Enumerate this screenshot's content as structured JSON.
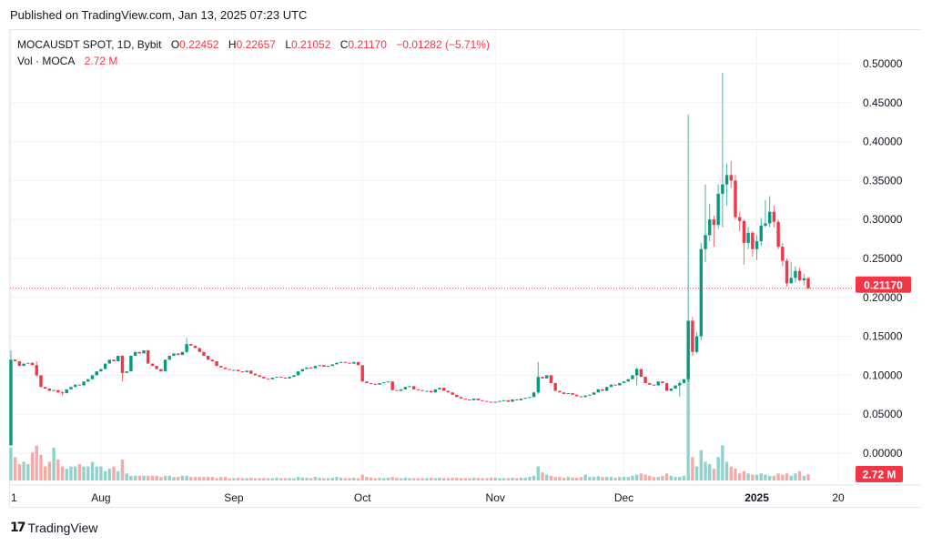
{
  "header": {
    "published": "Published on TradingView.com, Jan 13, 2025 07:23 UTC"
  },
  "legend": {
    "symbol": "MOCAUSDT SPOT, 1D, Bybit",
    "o_label": "O",
    "o": "0.22452",
    "h_label": "H",
    "h": "0.22657",
    "l_label": "L",
    "l": "0.21052",
    "c_label": "C",
    "c": "0.21170",
    "change": "−0.01282 (−5.71%)",
    "vol_label": "Vol · MOCA",
    "vol": "2.72 M"
  },
  "footer": {
    "brand": "TradingView",
    "logo_text": "17"
  },
  "colors": {
    "up": "#089981",
    "down": "#f23645",
    "up_volume": "#92d2cc",
    "down_volume": "#f7a9a7",
    "grid": "#f0f3fa",
    "axis_text": "#131722"
  },
  "chart_data": {
    "type": "candlestick",
    "start_date": "2024-07-11",
    "first_open": 0.01,
    "ylim": [
      0,
      0.5
    ],
    "y_ticks": [
      "0.00000",
      "0.05000",
      "0.10000",
      "0.15000",
      "0.20000",
      "0.25000",
      "0.30000",
      "0.35000",
      "0.40000",
      "0.45000",
      "0.50000"
    ],
    "x_ticks": [
      {
        "label": "1",
        "date": "2024-07-11"
      },
      {
        "label": "Aug",
        "date": "2024-08-01"
      },
      {
        "label": "Sep",
        "date": "2024-09-01"
      },
      {
        "label": "Oct",
        "date": "2024-10-01"
      },
      {
        "label": "Nov",
        "date": "2024-11-01"
      },
      {
        "label": "Dec",
        "date": "2024-12-01"
      },
      {
        "label": "2025",
        "date": "2025-01-01",
        "bold": true
      },
      {
        "label": "20",
        "date": "2025-01-20"
      }
    ],
    "last_price": {
      "value": 0.2117,
      "label": "0.21170"
    },
    "last_volume_label": "2.72 M",
    "close": [
      0.12,
      0.118,
      0.112,
      0.115,
      0.116,
      0.113,
      0.1,
      0.085,
      0.083,
      0.08,
      0.081,
      0.078,
      0.077,
      0.082,
      0.085,
      0.088,
      0.087,
      0.092,
      0.095,
      0.1,
      0.105,
      0.108,
      0.115,
      0.12,
      0.118,
      0.125,
      0.103,
      0.105,
      0.125,
      0.13,
      0.128,
      0.132,
      0.115,
      0.112,
      0.108,
      0.105,
      0.12,
      0.125,
      0.128,
      0.126,
      0.13,
      0.14,
      0.138,
      0.135,
      0.13,
      0.125,
      0.12,
      0.118,
      0.112,
      0.11,
      0.108,
      0.107,
      0.107,
      0.105,
      0.104,
      0.106,
      0.102,
      0.1,
      0.098,
      0.096,
      0.095,
      0.097,
      0.098,
      0.097,
      0.096,
      0.098,
      0.1,
      0.105,
      0.108,
      0.11,
      0.109,
      0.112,
      0.113,
      0.111,
      0.112,
      0.114,
      0.116,
      0.117,
      0.116,
      0.115,
      0.117,
      0.113,
      0.092,
      0.09,
      0.089,
      0.088,
      0.09,
      0.091,
      0.092,
      0.081,
      0.08,
      0.082,
      0.085,
      0.086,
      0.082,
      0.081,
      0.08,
      0.08,
      0.078,
      0.082,
      0.084,
      0.08,
      0.078,
      0.075,
      0.072,
      0.07,
      0.069,
      0.068,
      0.07,
      0.068,
      0.067,
      0.066,
      0.065,
      0.066,
      0.067,
      0.068,
      0.066,
      0.069,
      0.068,
      0.07,
      0.071,
      0.072,
      0.078,
      0.098,
      0.096,
      0.1,
      0.09,
      0.08,
      0.078,
      0.076,
      0.077,
      0.075,
      0.073,
      0.072,
      0.074,
      0.075,
      0.078,
      0.082,
      0.08,
      0.085,
      0.088,
      0.087,
      0.09,
      0.092,
      0.095,
      0.1,
      0.108,
      0.098,
      0.09,
      0.088,
      0.087,
      0.092,
      0.09,
      0.08,
      0.083,
      0.087,
      0.09,
      0.095,
      0.17,
      0.13,
      0.15,
      0.262,
      0.28,
      0.3,
      0.293,
      0.333,
      0.345,
      0.357,
      0.35,
      0.303,
      0.298,
      0.27,
      0.283,
      0.262,
      0.272,
      0.292,
      0.295,
      0.31,
      0.297,
      0.265,
      0.247,
      0.218,
      0.225,
      0.234,
      0.222,
      0.2245,
      0.2117
    ],
    "wicks": {
      "0": [
        0.132,
        0.01
      ],
      "6": [
        0.118,
        0.098
      ],
      "12": [
        0.08,
        0.074
      ],
      "26": [
        0.126,
        0.092
      ],
      "41": [
        0.148,
        0.128
      ],
      "123": [
        0.117,
        0.076
      ],
      "146": [
        0.11,
        0.087
      ],
      "156": [
        0.093,
        0.073
      ],
      "158": [
        0.435,
        0.092
      ],
      "159": [
        0.175,
        0.125
      ],
      "160": [
        0.155,
        0.128
      ],
      "161": [
        0.27,
        0.145
      ],
      "162": [
        0.345,
        0.245
      ],
      "163": [
        0.32,
        0.272
      ],
      "164": [
        0.305,
        0.265
      ],
      "165": [
        0.345,
        0.288
      ],
      "166": [
        0.488,
        0.29
      ],
      "167": [
        0.372,
        0.318
      ],
      "168": [
        0.375,
        0.34
      ],
      "169": [
        0.357,
        0.3
      ],
      "170": [
        0.31,
        0.285
      ],
      "171": [
        0.3,
        0.242
      ],
      "172": [
        0.29,
        0.262
      ],
      "173": [
        0.285,
        0.252
      ],
      "174": [
        0.28,
        0.248
      ],
      "175": [
        0.302,
        0.266
      ],
      "176": [
        0.325,
        0.29
      ],
      "177": [
        0.33,
        0.29
      ],
      "178": [
        0.318,
        0.29
      ],
      "179": [
        0.3,
        0.262
      ],
      "180": [
        0.27,
        0.24
      ],
      "181": [
        0.25,
        0.214
      ],
      "182": [
        0.245,
        0.218
      ],
      "183": [
        0.24,
        0.219
      ],
      "184": [
        0.238,
        0.22
      ],
      "185": [
        0.23,
        0.215
      ],
      "186": [
        0.22657,
        0.21052
      ]
    },
    "volume_millions": [
      14,
      10,
      7,
      8,
      7,
      12,
      15,
      11,
      6,
      8,
      14,
      9,
      6,
      5,
      6,
      6,
      7,
      6,
      6,
      8,
      6,
      6,
      4,
      5,
      6,
      4,
      9,
      3,
      2,
      2,
      2,
      2,
      2,
      2,
      2,
      1.5,
      2,
      2,
      1.5,
      1.5,
      2,
      2,
      1.5,
      1.5,
      1.5,
      1.5,
      1.5,
      1.5,
      1,
      1.5,
      1.5,
      1,
      1,
      1.2,
      1,
      1,
      1.2,
      1,
      1,
      1,
      1,
      1,
      1.2,
      1,
      1,
      1,
      1,
      1.5,
      1.2,
      1.2,
      1,
      1.5,
      1.2,
      1,
      1,
      1.2,
      1.5,
      1.2,
      1,
      1,
      1.2,
      1,
      2.5,
      1.5,
      1.2,
      1,
      1.2,
      1,
      1.2,
      1.5,
      1.2,
      1,
      1.2,
      1,
      1,
      1,
      1,
      1,
      1.2,
      1,
      1.2,
      1,
      1,
      1.2,
      1.2,
      1,
      1,
      1,
      1.2,
      1,
      1,
      1,
      1.2,
      1.2,
      1,
      1,
      1,
      1.2,
      1,
      1.2,
      1.2,
      1.5,
      2,
      6,
      3.5,
      2.5,
      2,
      1.5,
      1.5,
      1.2,
      1.5,
      1.2,
      1.2,
      1.5,
      2.5,
      1.5,
      1.5,
      1.8,
      1.5,
      1.5,
      1.5,
      1.2,
      1.5,
      1.5,
      1.5,
      2,
      2.5,
      3,
      2.5,
      2,
      1.5,
      1.5,
      2,
      3,
      2,
      1.5,
      1.5,
      2,
      44,
      10,
      6,
      13,
      8,
      7,
      5,
      10,
      15,
      8,
      6,
      5,
      3,
      4,
      3,
      2.5,
      2.5,
      3,
      2.5,
      2,
      2,
      3,
      2.5,
      3,
      2,
      3,
      4,
      2,
      2.72
    ]
  }
}
